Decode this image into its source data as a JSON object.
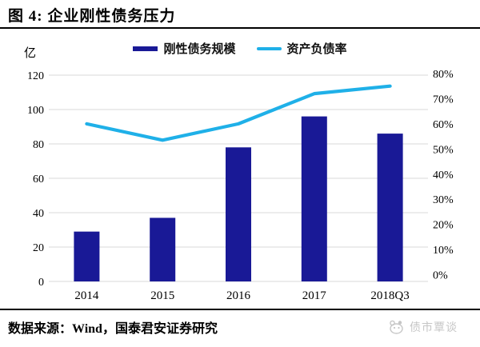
{
  "header": {
    "title": "图 4: 企业刚性债务压力"
  },
  "footer": {
    "source": "数据来源：Wind，国泰君安证券研究",
    "watermark": "债市覃谈"
  },
  "colors": {
    "bar": "#191996",
    "line": "#1FB0E8",
    "grid": "#D9D9D9",
    "axis_text": "#000000",
    "watermark": "#C6C6C6"
  },
  "chart_data": {
    "type": "bar",
    "title": "企业刚性债务压力",
    "categories": [
      "2014",
      "2015",
      "2016",
      "2017",
      "2018Q3"
    ],
    "series": [
      {
        "name": "刚性债务规模",
        "kind": "bar",
        "axis": "left",
        "color": "#191996",
        "values": [
          29,
          37,
          78,
          96,
          86
        ]
      },
      {
        "name": "资产负债率",
        "kind": "line",
        "axis": "right",
        "color": "#1FB0E8",
        "values": [
          60,
          53.5,
          60,
          72,
          75
        ],
        "unit": "%"
      }
    ],
    "left_axis": {
      "unit": "亿",
      "min": 0,
      "max": 120,
      "tick_step": 20,
      "ticks": [
        0,
        20,
        40,
        60,
        80,
        100,
        120
      ]
    },
    "right_axis": {
      "min": 0,
      "max": 80,
      "tick_step": 10,
      "format": "percent",
      "ticks": [
        0,
        10,
        20,
        30,
        40,
        50,
        60,
        70,
        80
      ]
    },
    "grid": true,
    "legend_position": "top"
  }
}
